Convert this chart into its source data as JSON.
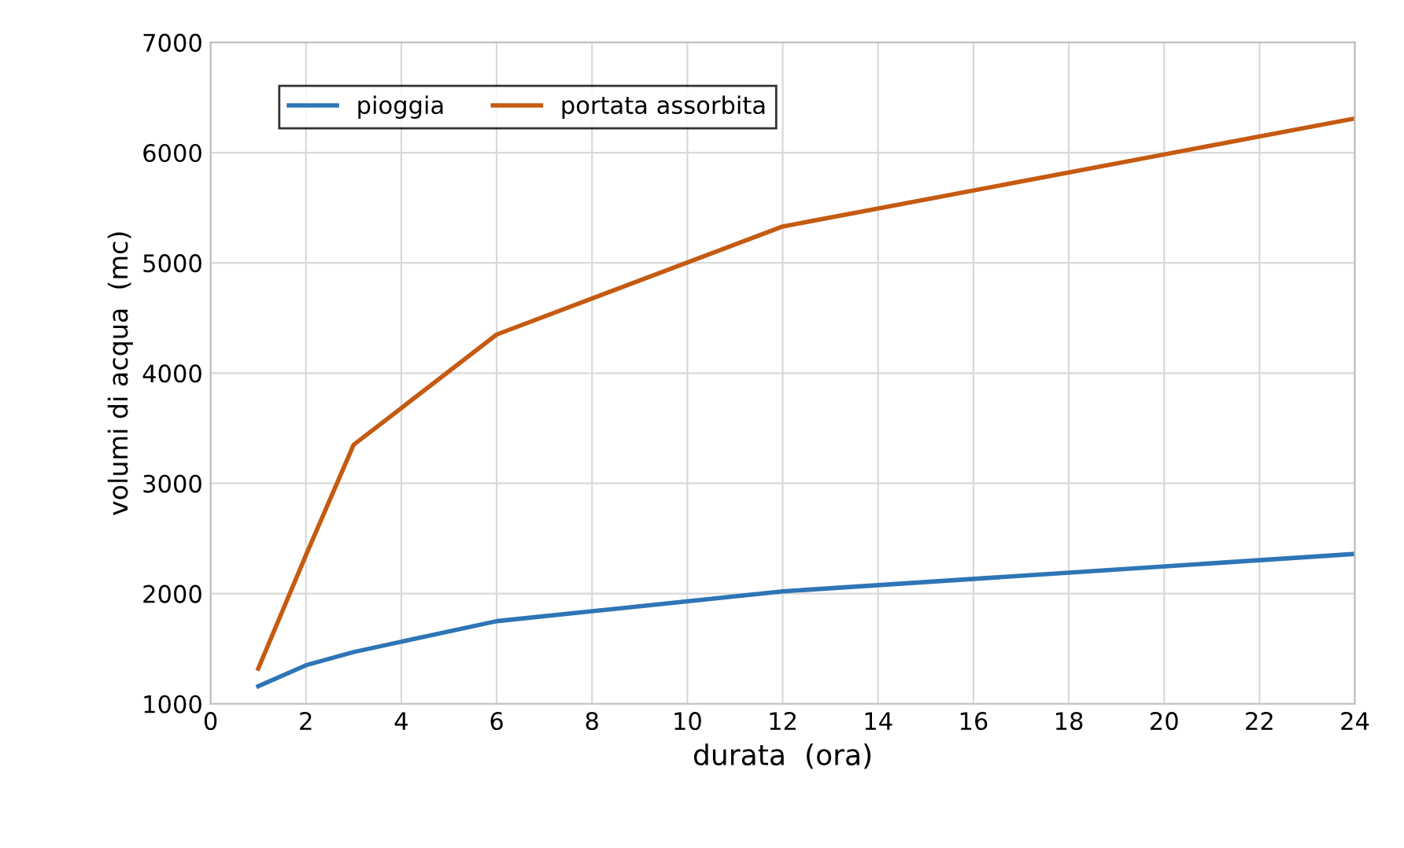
{
  "chart_data": {
    "type": "line",
    "xlabel": "durata  (ora)",
    "ylabel": "volumi di acqua  (mc)",
    "xlim": [
      0,
      24
    ],
    "xticks": [
      0,
      2,
      4,
      6,
      8,
      10,
      12,
      14,
      16,
      18,
      20,
      22,
      24
    ],
    "ylim": [
      1000,
      7000
    ],
    "yticks": [
      1000,
      2000,
      3000,
      4000,
      5000,
      6000,
      7000
    ],
    "grid": true,
    "legend": "top left",
    "marker": "none",
    "line_style": "solid",
    "series": [
      {
        "name": "pioggia",
        "color": "#2e75b6",
        "x": [
          1,
          2,
          3,
          6,
          12,
          24
        ],
        "values": [
          1160,
          1350,
          1470,
          1750,
          2020,
          2360
        ]
      },
      {
        "name": "portata assorbita",
        "color": "#c55a11",
        "x": [
          1,
          2,
          3,
          6,
          12,
          24
        ],
        "values": [
          1320,
          2350,
          3350,
          4350,
          5330,
          6310
        ]
      }
    ]
  }
}
